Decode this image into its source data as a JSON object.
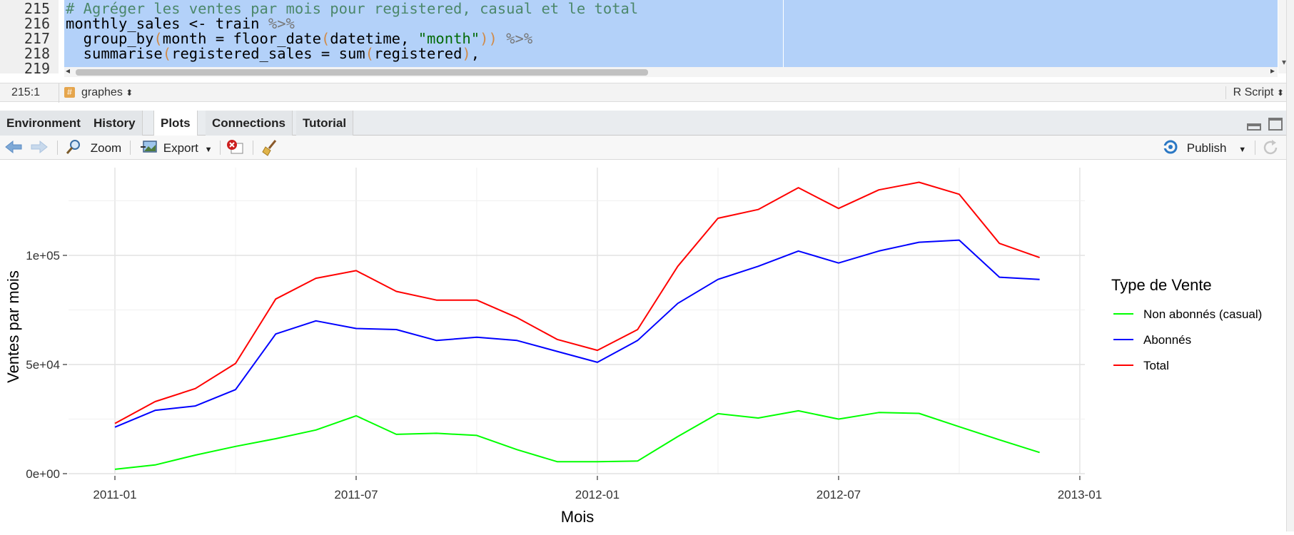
{
  "editor": {
    "lines": [
      {
        "num": "215",
        "tokens": [
          {
            "t": "# Agréger les ventes par mois pour registered, casual et le total",
            "c": "comment"
          }
        ]
      },
      {
        "num": "216",
        "tokens": [
          {
            "t": "monthly_sales <- train ",
            "c": ""
          },
          {
            "t": "%>%",
            "c": "op"
          }
        ]
      },
      {
        "num": "217",
        "tokens": [
          {
            "t": "  group_by",
            "c": ""
          },
          {
            "t": "(",
            "c": "paren"
          },
          {
            "t": "month = floor_date",
            "c": ""
          },
          {
            "t": "(",
            "c": "paren"
          },
          {
            "t": "datetime, ",
            "c": ""
          },
          {
            "t": "\"month\"",
            "c": "str"
          },
          {
            "t": "))",
            "c": "paren"
          },
          {
            "t": " %>%",
            "c": "op"
          }
        ]
      },
      {
        "num": "218",
        "tokens": [
          {
            "t": "  summarise",
            "c": ""
          },
          {
            "t": "(",
            "c": "paren"
          },
          {
            "t": "registered_sales = sum",
            "c": ""
          },
          {
            "t": "(",
            "c": "paren"
          },
          {
            "t": "registered",
            "c": ""
          },
          {
            "t": ")",
            "c": "paren"
          },
          {
            "t": ",",
            "c": ""
          }
        ]
      },
      {
        "num": "219",
        "tokens": []
      }
    ]
  },
  "statusbar": {
    "position": "215:1",
    "scope": "graphes",
    "file_type": "R Script"
  },
  "tabs": [
    {
      "label": "Environment",
      "active": false
    },
    {
      "label": "History",
      "active": false
    },
    {
      "label": "Plots",
      "active": true
    },
    {
      "label": "Connections",
      "active": false
    },
    {
      "label": "Tutorial",
      "active": false
    }
  ],
  "toolbar": {
    "zoom_label": "Zoom",
    "export_label": "Export",
    "publish_label": "Publish"
  },
  "chart_data": {
    "type": "line",
    "xlabel": "Mois",
    "ylabel": "Ventes par mois",
    "x_tick_labels": [
      "2011-01",
      "2011-07",
      "2012-01",
      "2012-07",
      "2013-01"
    ],
    "y_tick_labels": [
      "0e+00",
      "5e+04",
      "1e+05"
    ],
    "ylim": [
      0,
      130000
    ],
    "x": [
      "2011-01",
      "2011-02",
      "2011-03",
      "2011-04",
      "2011-05",
      "2011-06",
      "2011-07",
      "2011-08",
      "2011-09",
      "2011-10",
      "2011-11",
      "2011-12",
      "2012-01",
      "2012-02",
      "2012-03",
      "2012-04",
      "2012-05",
      "2012-06",
      "2012-07",
      "2012-08",
      "2012-09",
      "2012-10",
      "2012-11",
      "2012-12"
    ],
    "legend": {
      "title": "Type de Vente",
      "position": "right"
    },
    "grid": true,
    "series": [
      {
        "name": "Non abonnés (casual)",
        "color": "#00ff00",
        "values": [
          2000,
          4000,
          8500,
          12500,
          16000,
          20000,
          26500,
          18000,
          18500,
          17500,
          11000,
          5500,
          5500,
          5800,
          17000,
          27500,
          25500,
          28800,
          25000,
          28000,
          27600,
          21500,
          15500,
          9700
        ]
      },
      {
        "name": "Abonnés",
        "color": "#0000ff",
        "values": [
          21300,
          29000,
          31000,
          38500,
          64000,
          70000,
          66500,
          66000,
          61000,
          62500,
          61000,
          56000,
          51000,
          61000,
          78000,
          89000,
          95000,
          102000,
          96500,
          102000,
          106000,
          107000,
          90000,
          89000
        ]
      },
      {
        "name": "Total",
        "color": "#ff0000",
        "values": [
          23000,
          33000,
          39000,
          50500,
          80000,
          89500,
          93000,
          83500,
          79500,
          79500,
          71500,
          61500,
          56500,
          66000,
          95000,
          117000,
          121000,
          131000,
          121500,
          130000,
          133500,
          128000,
          105500,
          99000
        ]
      }
    ]
  }
}
